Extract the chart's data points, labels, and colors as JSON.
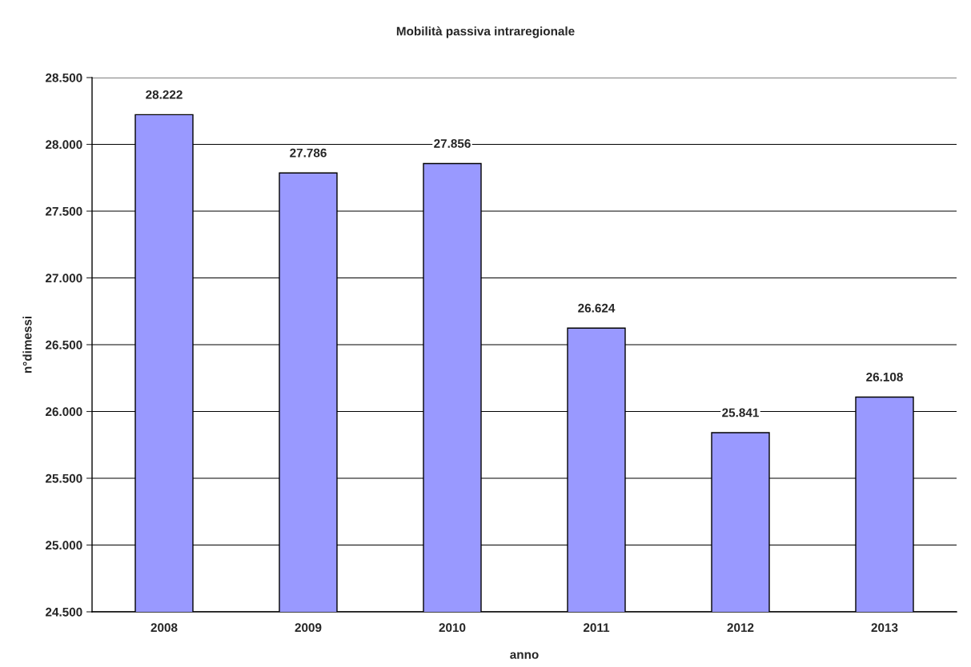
{
  "chart_data": {
    "type": "bar",
    "title": "Mobilità passiva intraregionale",
    "xlabel": "anno",
    "ylabel": "n°dimessi",
    "categories": [
      "2008",
      "2009",
      "2010",
      "2011",
      "2012",
      "2013"
    ],
    "values": [
      28222,
      27786,
      27856,
      26624,
      25841,
      26108
    ],
    "value_labels": [
      "28.222",
      "27.786",
      "27.856",
      "26.624",
      "25.841",
      "26.108"
    ],
    "color": "#9999ff",
    "ylim": [
      24500,
      28500
    ],
    "yticks": [
      {
        "value": 24500,
        "label": "24.500"
      },
      {
        "value": 25000,
        "label": "25.000"
      },
      {
        "value": 25500,
        "label": "25.500"
      },
      {
        "value": 26000,
        "label": "26.000"
      },
      {
        "value": 26500,
        "label": "26.500"
      },
      {
        "value": 27000,
        "label": "27.000"
      },
      {
        "value": 27500,
        "label": "27.500"
      },
      {
        "value": 28000,
        "label": "28.000"
      },
      {
        "value": 28500,
        "label": "28.500"
      }
    ],
    "grid": "y",
    "legend": false
  }
}
